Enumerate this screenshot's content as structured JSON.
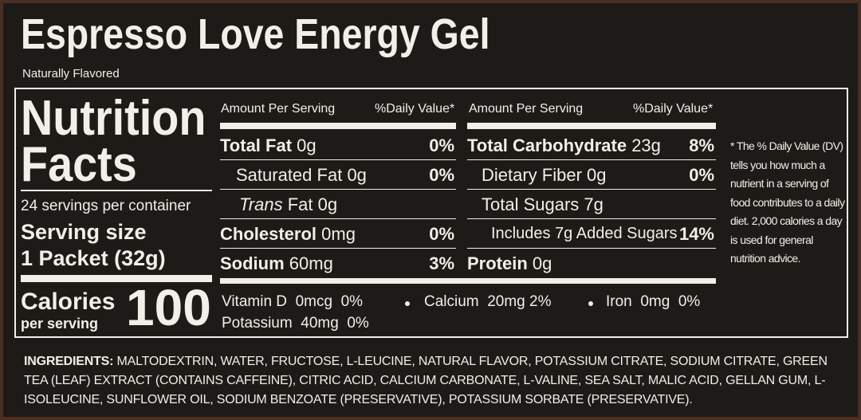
{
  "header": {
    "title": "Espresso Love Energy Gel",
    "subtitle": "Naturally Flavored"
  },
  "facts": {
    "title_line1": "Nutrition",
    "title_line2": "Facts",
    "servings": "24 servings per container",
    "serving_size_label": "Serving size",
    "serving_size": "1 Packet (32g)",
    "calories_label": "Calories",
    "calories_sub": "per serving",
    "calories": "100"
  },
  "columns": [
    {
      "amount_header": "Amount Per Serving",
      "dv_header": "%Daily Value*",
      "rows": [
        {
          "name": "Total Fat",
          "amount": "0g",
          "dv": "0%"
        },
        {
          "name": "Saturated Fat",
          "amount": "0g",
          "dv": "0%"
        },
        {
          "prefix": "Trans",
          "name": "Fat",
          "amount": "0g"
        },
        {
          "name": "Cholesterol",
          "amount": "0mg",
          "dv": "0%"
        },
        {
          "name": "Sodium",
          "amount": "60mg",
          "dv": "3%"
        }
      ]
    },
    {
      "amount_header": "Amount Per Serving",
      "dv_header": "%Daily Value*",
      "rows": [
        {
          "name": "Total Carbohydrate",
          "amount": "23g",
          "dv": "8%"
        },
        {
          "name": "Dietary Fiber",
          "amount": "0g",
          "dv": "0%"
        },
        {
          "name": "Total Sugars",
          "amount": "7g"
        },
        {
          "name": "Includes 7g Added Sugars",
          "dv": "14%"
        },
        {
          "name": "Protein",
          "amount": "0g"
        }
      ]
    }
  ],
  "vitamins": [
    {
      "name": "Vitamin D",
      "amount": "0mcg",
      "dv": "0%"
    },
    {
      "name": "Calcium",
      "amount": "20mg",
      "dv": "2%"
    },
    {
      "name": "Iron",
      "amount": "0mg",
      "dv": "0%"
    },
    {
      "name": "Potassium",
      "amount": "40mg",
      "dv": "0%"
    }
  ],
  "footnote": "* The % Daily Value (DV) tells you how much a nutrient in a serving of food contributes to a daily diet. 2,000 calories a day is used for general nutrition advice.",
  "ingredients": {
    "label": "INGREDIENTS:",
    "text": "MALTODEXTRIN, WATER, FRUCTOSE, L-LEUCINE, NATURAL FLAVOR, POTASSIUM CITRATE, SODIUM CITRATE, GREEN TEA (LEAF) EXTRACT (CONTAINS CAFFEINE), CITRIC ACID, CALCIUM CARBONATE, L-VALINE, SEA SALT, MALIC ACID, GELLAN GUM, L-ISOLEUCINE, SUNFLOWER OIL, SODIUM BENZOATE (PRESERVATIVE), POTASSIUM SORBATE (PRESERVATIVE)."
  }
}
